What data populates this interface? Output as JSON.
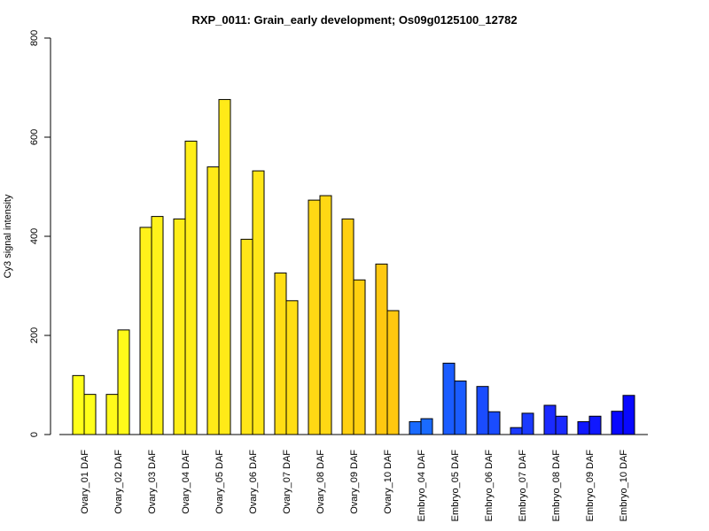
{
  "chart_data": {
    "type": "bar",
    "title": "RXP_0011: Grain_early development; Os09g0125100_12782",
    "xlabel": "",
    "ylabel": "Cy3 signal intensity",
    "ylim": [
      0,
      800
    ],
    "yticks": [
      0,
      200,
      400,
      600,
      800
    ],
    "grid": false,
    "legend": "none",
    "categories": [
      "Ovary_01 DAF",
      "Ovary_02 DAF",
      "Ovary_03 DAF",
      "Ovary_04 DAF",
      "Ovary_05 DAF",
      "Ovary_06 DAF",
      "Ovary_07 DAF",
      "Ovary_08 DAF",
      "Ovary_09 DAF",
      "Ovary_10 DAF",
      "Embryo_04 DAF",
      "Embryo_05 DAF",
      "Embryo_06 DAF",
      "Embryo_07 DAF",
      "Embryo_08 DAF",
      "Embryo_09 DAF",
      "Embryo_10 DAF"
    ],
    "series": [
      {
        "values": [
          119,
          81,
          418,
          435,
          540,
          394,
          326,
          473,
          435,
          344,
          26,
          144,
          97,
          14,
          59,
          26,
          47
        ]
      },
      {
        "values": [
          81,
          211,
          440,
          592,
          676,
          532,
          270,
          482,
          312,
          250,
          32,
          108,
          46,
          43,
          37,
          37,
          79
        ]
      }
    ],
    "bar_colors": [
      "#FFFF1A",
      "#FFFA1A",
      "#FFF21A",
      "#FFEE18",
      "#FFEA18",
      "#FFE618",
      "#FFDE14",
      "#FFD814",
      "#FFD010",
      "#FFC810",
      "#1A6BFF",
      "#1A5CFF",
      "#1A4CFF",
      "#1A3AFF",
      "#1A2AFF",
      "#1018FF",
      "#0808FF"
    ]
  }
}
